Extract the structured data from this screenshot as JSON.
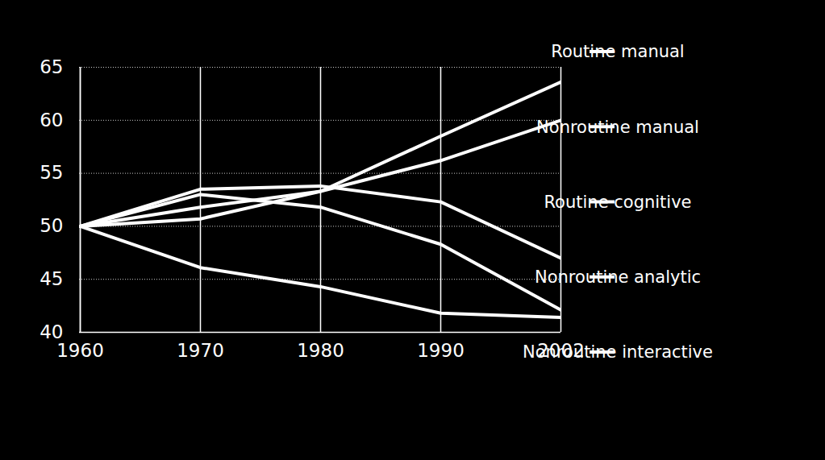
{
  "chart_data": {
    "type": "line",
    "categories": [
      1960,
      1970,
      1980,
      1990,
      2002
    ],
    "series": [
      {
        "name": "Routine manual",
        "color": "#ffffff",
        "values": [
          50,
          53.0,
          51.8,
          48.3,
          42.1
        ]
      },
      {
        "name": "Nonroutine manual",
        "color": "#ffffff",
        "values": [
          50,
          46.1,
          44.3,
          41.8,
          41.4
        ]
      },
      {
        "name": "Routine cognitive",
        "color": "#ffffff",
        "values": [
          50,
          53.5,
          53.8,
          52.3,
          47.0
        ]
      },
      {
        "name": "Nonroutine analytic",
        "color": "#ffffff",
        "values": [
          50,
          51.8,
          53.3,
          56.2,
          60.0
        ]
      },
      {
        "name": "Nonroutine interactive",
        "color": "#ffffff",
        "values": [
          50,
          50.7,
          53.3,
          58.5,
          63.6
        ]
      }
    ],
    "ylim": [
      40,
      65
    ],
    "yticks": [
      40,
      45,
      50,
      55,
      60,
      65
    ],
    "grid": true,
    "legend": "right"
  }
}
